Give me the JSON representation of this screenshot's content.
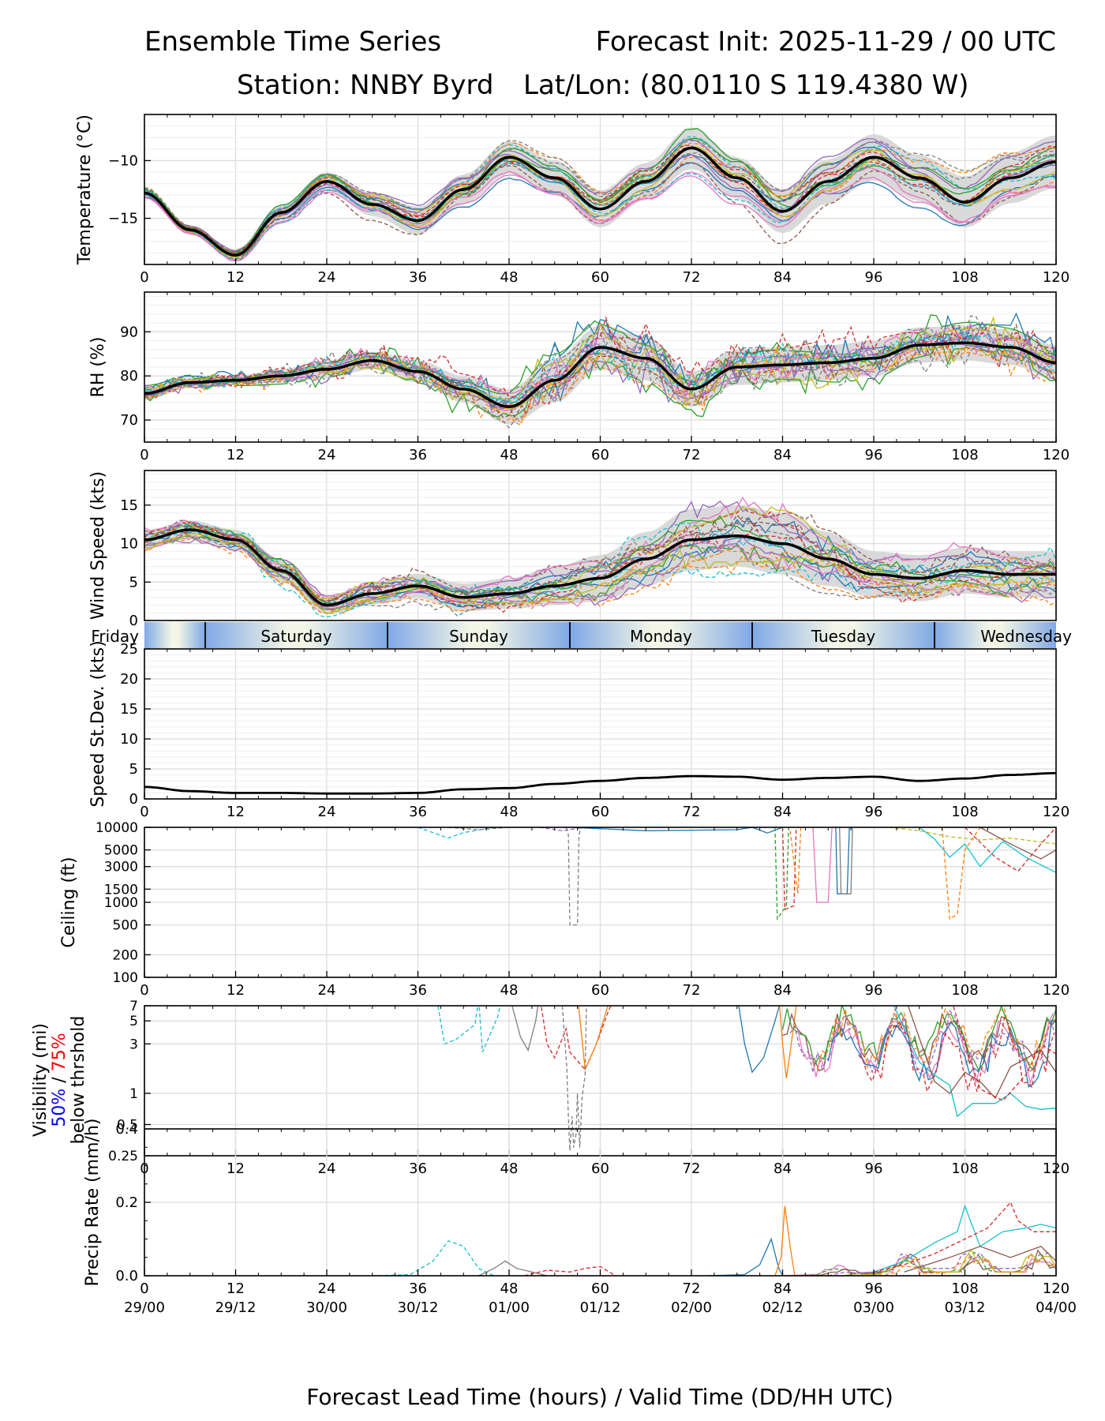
{
  "header": {
    "title_left": "Ensemble Time Series",
    "title_right": "Forecast Init: 2025-11-29 / 00 UTC",
    "station": "Station: NNBY Byrd",
    "latlon": "Lat/Lon: (80.0110 S 119.4380 W)",
    "xlabel": "Forecast Lead Time (hours) / Valid Time (DD/HH UTC)"
  },
  "x_axis": {
    "lead_ticks": [
      "0",
      "12",
      "24",
      "36",
      "48",
      "60",
      "72",
      "84",
      "96",
      "108",
      "120"
    ],
    "valid_ticks": [
      "29/00",
      "29/12",
      "30/00",
      "30/12",
      "01/00",
      "01/12",
      "02/00",
      "02/12",
      "03/00",
      "03/12",
      "04/00"
    ]
  },
  "day_bar": {
    "days": [
      "Friday",
      "Saturday",
      "Sunday",
      "Monday",
      "Tuesday",
      "Wednesday"
    ],
    "boundaries_h": [
      8,
      32,
      56,
      80,
      104
    ]
  },
  "visibility_label": {
    "line1": "Visibility (mi)",
    "p50": "50%",
    "sep": " / ",
    "p75": "75%",
    "line3": "below thrshold"
  },
  "colors": {
    "mean": "#000000",
    "spread": "#d9d9d9",
    "p50": "#0000ff",
    "p75": "#ff0000",
    "members": [
      "#1f77b4",
      "#ff7f0e",
      "#2ca02c",
      "#d62728",
      "#9467bd",
      "#8c564b",
      "#e377c2",
      "#7f7f7f",
      "#bcbd22",
      "#17becf"
    ]
  },
  "chart_data": [
    {
      "type": "line",
      "name": "temperature",
      "ylabel": "Temperature (°C)",
      "ylim": [
        -19,
        -6
      ],
      "yticks": [
        -10,
        -15
      ],
      "ytick_labels": [
        "−10",
        "−15"
      ],
      "x": [
        0,
        6,
        12,
        18,
        24,
        30,
        36,
        42,
        48,
        54,
        60,
        66,
        72,
        78,
        84,
        90,
        96,
        102,
        108,
        114,
        120
      ],
      "mean": [
        -12.8,
        -16,
        -18.2,
        -14.5,
        -11.8,
        -13.8,
        -15.2,
        -12.5,
        -9.7,
        -11.5,
        -14.2,
        -11.8,
        -8.9,
        -11.5,
        -14.4,
        -11.8,
        -9.7,
        -11.5,
        -13.6,
        -11.5,
        -10.1
      ],
      "spread": [
        0.4,
        0.4,
        0.5,
        0.7,
        0.8,
        1.0,
        1.2,
        1.3,
        1.4,
        1.5,
        1.6,
        1.6,
        1.8,
        1.8,
        1.9,
        1.9,
        2.0,
        2.0,
        2.2,
        2.2,
        2.3
      ],
      "members": 20
    },
    {
      "type": "line",
      "name": "relative-humidity",
      "ylabel": "RH (%)",
      "ylim": [
        65,
        99
      ],
      "yticks": [
        70,
        80,
        90
      ],
      "ytick_labels": [
        "70",
        "80",
        "90"
      ],
      "x": [
        0,
        6,
        12,
        18,
        24,
        30,
        36,
        42,
        48,
        54,
        60,
        66,
        72,
        78,
        84,
        90,
        96,
        102,
        108,
        114,
        120
      ],
      "mean": [
        76,
        78.5,
        79,
        80,
        81.5,
        83.5,
        81,
        77,
        73,
        79,
        86.5,
        84,
        77,
        82,
        82.5,
        83,
        84,
        87,
        87.5,
        86.5,
        83
      ],
      "spread": [
        1.5,
        1.2,
        1,
        1.5,
        2,
        2,
        2.5,
        3,
        4,
        5,
        5,
        5,
        4,
        4,
        4,
        4,
        4,
        4,
        4,
        4,
        4
      ],
      "members": 20
    },
    {
      "type": "line",
      "name": "wind-speed",
      "ylabel": "Wind Speed (kts)",
      "ylim": [
        0,
        19.5
      ],
      "yticks": [
        0,
        5,
        10,
        15
      ],
      "ytick_labels": [
        "0",
        "5",
        "10",
        "15"
      ],
      "x": [
        0,
        6,
        12,
        18,
        24,
        30,
        36,
        42,
        48,
        54,
        60,
        66,
        72,
        78,
        84,
        90,
        96,
        102,
        108,
        114,
        120
      ],
      "mean": [
        10.5,
        11.8,
        10.5,
        6.5,
        2,
        3.5,
        4.5,
        3,
        3.5,
        4.5,
        5.5,
        8,
        10.5,
        11,
        10,
        8,
        6,
        5.5,
        6.5,
        6,
        6
      ],
      "spread": [
        1.2,
        1.2,
        1.3,
        1.5,
        1.2,
        1.4,
        1.6,
        1.8,
        2,
        2.5,
        3,
        3.5,
        4,
        4,
        4,
        3.5,
        3,
        3,
        3,
        3,
        3
      ],
      "members": 20
    },
    {
      "type": "line",
      "name": "speed-stdev",
      "ylabel": "Speed St.Dev. (kts)",
      "ylim": [
        0,
        25
      ],
      "yticks": [
        0,
        5,
        10,
        15,
        20,
        25
      ],
      "ytick_labels": [
        "0",
        "5",
        "10",
        "15",
        "20",
        "25"
      ],
      "x": [
        0,
        6,
        12,
        18,
        24,
        30,
        36,
        42,
        48,
        54,
        60,
        66,
        72,
        78,
        84,
        90,
        96,
        102,
        108,
        114,
        120
      ],
      "mean": [
        2,
        1.3,
        1,
        1,
        0.9,
        0.9,
        1,
        1.6,
        1.8,
        2.5,
        3,
        3.5,
        3.8,
        3.7,
        3.2,
        3.5,
        3.7,
        3,
        3.4,
        4,
        4.3
      ]
    },
    {
      "type": "line",
      "name": "ceiling",
      "ylabel": "Ceiling (ft)",
      "scale": "log",
      "ylim": [
        100,
        10000
      ],
      "yticks": [
        100,
        200,
        500,
        1000,
        1500,
        3000,
        5000,
        10000
      ],
      "ytick_labels": [
        "100",
        "200",
        "500",
        "1000",
        "1500",
        "3000",
        "5000",
        "10000"
      ]
    },
    {
      "type": "line",
      "name": "visibility",
      "scale": "log",
      "ylim": [
        0.25,
        7
      ],
      "yticks": [
        0.25,
        0.5,
        1,
        3,
        5,
        7
      ],
      "ytick_labels": [
        "0.25",
        "0.5",
        "1",
        "3",
        "5",
        "7"
      ]
    },
    {
      "type": "line",
      "name": "precip-rate",
      "ylabel": "Precip Rate (mm/h)",
      "ylim": [
        0,
        0.4
      ],
      "yticks": [
        0,
        0.2,
        0.4
      ],
      "ytick_labels": [
        "0.0",
        "0.2",
        "0.4"
      ]
    }
  ]
}
